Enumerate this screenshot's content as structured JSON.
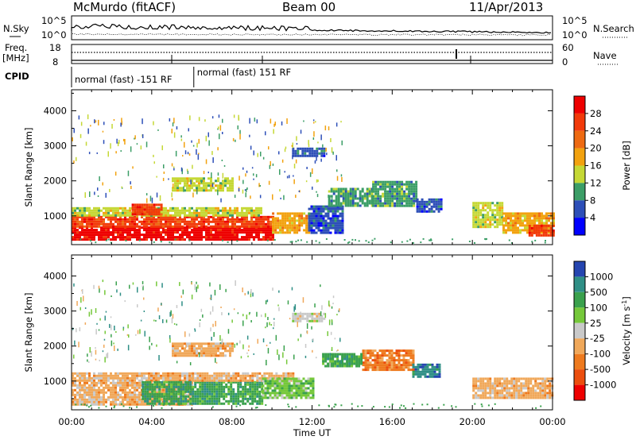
{
  "header": {
    "station": "McMurdo (fitACF)",
    "beam": "Beam 00",
    "date": "11/Apr/2013"
  },
  "top_panels": {
    "left_labels": {
      "nsky": "N.Sky",
      "freq_line1": "Freq.",
      "freq_line2": "[MHz]",
      "cpid": "CPID"
    },
    "right_labels": {
      "nsearch": "N.Search",
      "nave": "Nave"
    },
    "noise_ticks": {
      "top": "10^5",
      "bottom": "10^0"
    },
    "freq_ticks": {
      "top": "18",
      "bottom": "8"
    },
    "nave_ticks": {
      "top": "60",
      "bottom": "0"
    },
    "cpid_segments": [
      {
        "label": "normal (fast) -151 RF",
        "start_hour": 0,
        "end_hour": 6.1
      },
      {
        "label": "normal (fast) 151 RF",
        "start_hour": 6.1,
        "end_hour": 24
      }
    ]
  },
  "chart_data": [
    {
      "type": "heatmap",
      "name": "power",
      "ylabel": "Slant Range [km]",
      "xlabel": "",
      "xlim": [
        0,
        24
      ],
      "ylim": [
        180,
        4600
      ],
      "yticks": [
        1000,
        2000,
        3000,
        4000
      ],
      "colorbar": {
        "label": "Power [dB]",
        "ticks": [
          "4",
          "8",
          "12",
          "16",
          "20",
          "24",
          "28"
        ],
        "colors": [
          "#0000ff",
          "#2d4fb8",
          "#3c9e67",
          "#c5d835",
          "#f2a20f",
          "#ee6a12",
          "#f23a0a",
          "#ee0000"
        ]
      },
      "regions": [
        {
          "t0": 0.0,
          "t1": 10.0,
          "r0": 300,
          "r1": 700,
          "level": 28
        },
        {
          "t0": 0.0,
          "t1": 10.0,
          "r0": 700,
          "r1": 1000,
          "level": 26
        },
        {
          "t0": 0.0,
          "t1": 9.5,
          "r0": 1000,
          "r1": 1250,
          "level": 12
        },
        {
          "t0": 3.0,
          "t1": 4.5,
          "r0": 1050,
          "r1": 1350,
          "level": 24
        },
        {
          "t0": 10.0,
          "t1": 11.8,
          "r0": 500,
          "r1": 1100,
          "level": 16
        },
        {
          "t0": 11.8,
          "t1": 13.5,
          "r0": 500,
          "r1": 1300,
          "level": 6
        },
        {
          "t0": 12.8,
          "t1": 15.0,
          "r0": 1300,
          "r1": 1800,
          "level": 8
        },
        {
          "t0": 15.0,
          "t1": 17.2,
          "r0": 1300,
          "r1": 2000,
          "level": 10
        },
        {
          "t0": 17.2,
          "t1": 18.4,
          "r0": 1100,
          "r1": 1500,
          "level": 7
        },
        {
          "t0": 20.0,
          "t1": 21.5,
          "r0": 700,
          "r1": 1400,
          "level": 14
        },
        {
          "t0": 21.5,
          "t1": 24.0,
          "r0": 500,
          "r1": 1100,
          "level": 18
        },
        {
          "t0": 22.8,
          "t1": 24.0,
          "r0": 450,
          "r1": 750,
          "level": 26
        },
        {
          "t0": 11.0,
          "t1": 12.6,
          "r0": 2700,
          "r1": 2950,
          "level": 6
        },
        {
          "t0": 5.0,
          "t1": 8.0,
          "r0": 1700,
          "r1": 2100,
          "level": 14
        }
      ],
      "scatter_seed": 11
    },
    {
      "type": "heatmap",
      "name": "velocity",
      "ylabel": "Slant Range [km]",
      "xlabel": "Time UT",
      "xlim": [
        0,
        24
      ],
      "ylim": [
        180,
        4600
      ],
      "yticks": [
        1000,
        2000,
        3000,
        4000
      ],
      "xticks": [
        "00:00",
        "04:00",
        "08:00",
        "12:00",
        "16:00",
        "20:00",
        "00:00"
      ],
      "colorbar": {
        "label": "Velocity [m s",
        "label_sup": "-1",
        "label_end": "]",
        "ticks": [
          "1000",
          "500",
          "100",
          "25",
          "-25",
          "-100",
          "-500",
          "-1000"
        ],
        "colors": [
          "#2545b0",
          "#2f8f86",
          "#3aa14d",
          "#75c83a",
          "#c9c9c9",
          "#f0a85a",
          "#ee7a1e",
          "#ec4e0e",
          "#ee0000"
        ]
      },
      "regions": [
        {
          "t0": 0.0,
          "t1": 6.0,
          "r0": 350,
          "r1": 1250,
          "level": -100
        },
        {
          "t0": 3.5,
          "t1": 9.5,
          "r0": 350,
          "r1": 1000,
          "level": 100
        },
        {
          "t0": 6.0,
          "t1": 11.0,
          "r0": 1000,
          "r1": 1250,
          "level": -100
        },
        {
          "t0": 9.5,
          "t1": 12.0,
          "r0": 500,
          "r1": 1100,
          "level": 25
        },
        {
          "t0": 14.5,
          "t1": 17.0,
          "r0": 1300,
          "r1": 1900,
          "level": -500
        },
        {
          "t0": 12.5,
          "t1": 14.5,
          "r0": 1400,
          "r1": 1800,
          "level": 100
        },
        {
          "t0": 17.0,
          "t1": 18.4,
          "r0": 1100,
          "r1": 1500,
          "level": 500
        },
        {
          "t0": 20.0,
          "t1": 24.0,
          "r0": 500,
          "r1": 1100,
          "level": -100
        },
        {
          "t0": 11.0,
          "t1": 12.6,
          "r0": 2700,
          "r1": 2950,
          "level": -25
        },
        {
          "t0": 5.0,
          "t1": 8.0,
          "r0": 1700,
          "r1": 2100,
          "level": -100
        }
      ],
      "scatter_seed": 23
    }
  ]
}
